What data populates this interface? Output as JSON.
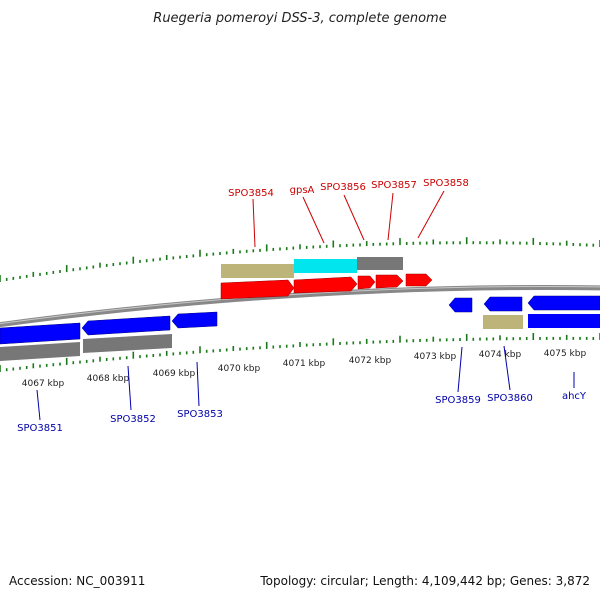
{
  "title": "Ruegeria pomeroyi DSS-3, complete genome",
  "footer": {
    "accession": "Accession: NC_003911",
    "summary": "Topology: circular; Length: 4,109,442 bp; Genes: 3,872"
  },
  "colors": {
    "forward_gene": "#ff0000",
    "reverse_gene": "#0000ff",
    "forward_label": "#cc0000",
    "reverse_label": "#0000aa",
    "backbone": "#888888",
    "tick": "#1a7a1a",
    "feature_grey": "#777777",
    "feature_tan": "#bdb47a",
    "feature_cyan": "#00e5ee"
  },
  "scale_labels": [
    "4067 kbp",
    "4068 kbp",
    "4069 kbp",
    "4070 kbp",
    "4071 kbp",
    "4072 kbp",
    "4073 kbp",
    "4074 kbp",
    "4075 kbp"
  ],
  "forward_genes": [
    "SPO3854",
    "gpsA",
    "SPO3856",
    "SPO3857",
    "SPO3858"
  ],
  "reverse_genes": [
    "SPO3851",
    "SPO3852",
    "SPO3853",
    "SPO3859",
    "SPO3860",
    "ahcY"
  ]
}
